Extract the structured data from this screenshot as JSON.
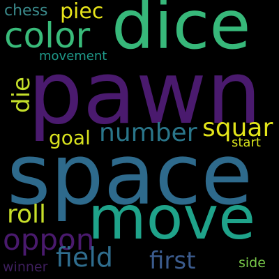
{
  "words": {
    "pawn": {
      "text": "pawn",
      "color": "#4a1a6e"
    },
    "space": {
      "text": "space",
      "color": "#2e6a8c"
    },
    "dice": {
      "text": "dice",
      "color": "#37b87a"
    },
    "move": {
      "text": "move",
      "color": "#1fa38a"
    },
    "color": {
      "text": "color",
      "color": "#39bb7a"
    },
    "number": {
      "text": "number",
      "color": "#2a768a"
    },
    "squar": {
      "text": "squar",
      "color": "#e2e41a"
    },
    "oppon": {
      "text": "oppon",
      "color": "#4a1a6e"
    },
    "field": {
      "text": "field",
      "color": "#2f6d8e"
    },
    "first": {
      "text": "first",
      "color": "#3b5b8d"
    },
    "roll": {
      "text": "roll",
      "color": "#c8df29"
    },
    "goal": {
      "text": "goal",
      "color": "#d8e21e"
    },
    "piec": {
      "text": "piec",
      "color": "#e7e41a"
    },
    "chess": {
      "text": "chess",
      "color": "#3b8b8c"
    },
    "movement": {
      "text": "movement",
      "color": "#1f9a8a"
    },
    "start": {
      "text": "start",
      "color": "#d7e31c"
    },
    "winner": {
      "text": "winner",
      "color": "#3d1e5c"
    },
    "side": {
      "text": "side",
      "color": "#7acb4a"
    },
    "die": {
      "text": "die",
      "color": "#c4df2a"
    }
  }
}
